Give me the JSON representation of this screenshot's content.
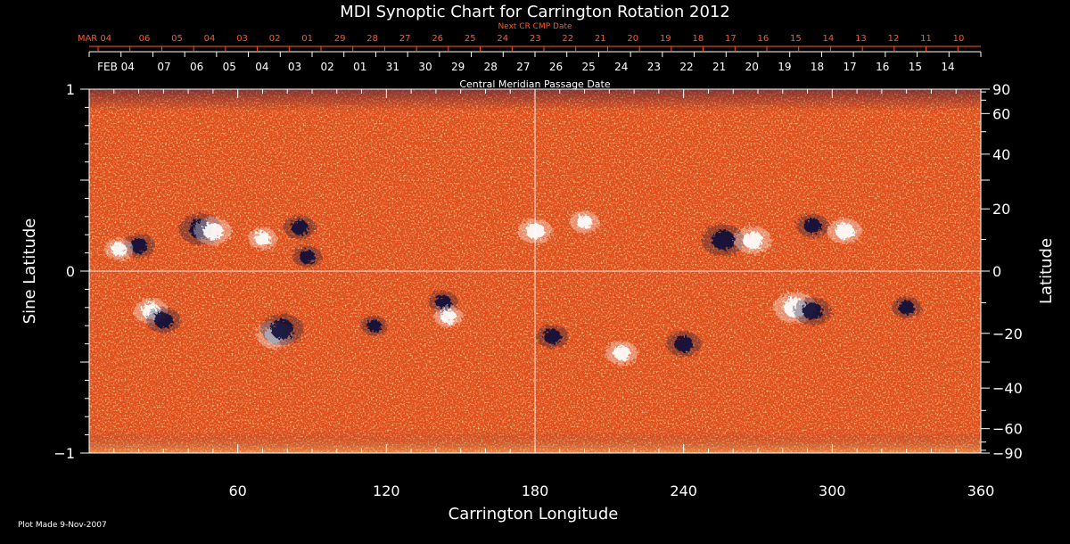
{
  "chart_data": {
    "type": "heatmap",
    "title": "MDI Synoptic Chart for Carrington Rotation 2012",
    "xlabel": "Carrington Longitude",
    "ylabel_left": "Sine Latitude",
    "ylabel_right": "Latitude",
    "xlim": [
      0,
      360
    ],
    "ylim": [
      -1,
      1
    ],
    "x_ticks": [
      60,
      120,
      180,
      240,
      300,
      360
    ],
    "y_ticks_left": [
      {
        "value": 1,
        "label": "1"
      },
      {
        "value": 0,
        "label": "0"
      },
      {
        "value": -1,
        "label": "−1"
      }
    ],
    "y_ticks_right": [
      {
        "deg": 90,
        "label": "90"
      },
      {
        "deg": 60,
        "label": "60"
      },
      {
        "deg": 40,
        "label": "40"
      },
      {
        "deg": 20,
        "label": "20"
      },
      {
        "deg": 0,
        "label": "0"
      },
      {
        "deg": -20,
        "label": "−20"
      },
      {
        "deg": -40,
        "label": "−40"
      },
      {
        "deg": -60,
        "label": "−60"
      },
      {
        "deg": -90,
        "label": "−90"
      }
    ],
    "cmp_axis_label": "Central Meridian Passage Date",
    "cmp_dates": [
      "FEB 04",
      "07",
      "06",
      "05",
      "04",
      "03",
      "02",
      "01",
      "31",
      "30",
      "29",
      "28",
      "27",
      "26",
      "25",
      "24",
      "23",
      "22",
      "21",
      "20",
      "19",
      "18",
      "17",
      "16",
      "15",
      "14"
    ],
    "next_cr_label": "Next CR CMP Date",
    "next_cr_dates": [
      "MAR 04",
      "06",
      "05",
      "04",
      "03",
      "02",
      "01",
      "29",
      "28",
      "27",
      "26",
      "25",
      "24",
      "23",
      "22",
      "21",
      "20",
      "19",
      "18",
      "17",
      "16",
      "15",
      "14",
      "13",
      "12",
      "11",
      "10"
    ],
    "colormap": {
      "background": "#e8501a",
      "positive": "#ffffff",
      "negative": "#10103a",
      "grid": "#ffffff",
      "next_cr_color": "#ff5a1e"
    },
    "active_regions": [
      {
        "lon": 45,
        "sinlat": 0.23,
        "polarity": "negative",
        "strength": 1.0
      },
      {
        "lon": 50,
        "sinlat": 0.22,
        "polarity": "positive",
        "strength": 0.8
      },
      {
        "lon": 70,
        "sinlat": 0.18,
        "polarity": "positive",
        "strength": 0.5
      },
      {
        "lon": 85,
        "sinlat": 0.24,
        "polarity": "negative",
        "strength": 0.6
      },
      {
        "lon": 88,
        "sinlat": 0.08,
        "polarity": "negative",
        "strength": 0.5
      },
      {
        "lon": 20,
        "sinlat": 0.14,
        "polarity": "negative",
        "strength": 0.6
      },
      {
        "lon": 12,
        "sinlat": 0.12,
        "polarity": "positive",
        "strength": 0.5
      },
      {
        "lon": 25,
        "sinlat": -0.22,
        "polarity": "positive",
        "strength": 0.7
      },
      {
        "lon": 30,
        "sinlat": -0.27,
        "polarity": "negative",
        "strength": 0.7
      },
      {
        "lon": 75,
        "sinlat": -0.35,
        "polarity": "positive",
        "strength": 0.8
      },
      {
        "lon": 78,
        "sinlat": -0.32,
        "polarity": "negative",
        "strength": 1.0
      },
      {
        "lon": 115,
        "sinlat": -0.3,
        "polarity": "negative",
        "strength": 0.4
      },
      {
        "lon": 143,
        "sinlat": -0.17,
        "polarity": "negative",
        "strength": 0.5
      },
      {
        "lon": 145,
        "sinlat": -0.25,
        "polarity": "positive",
        "strength": 0.5
      },
      {
        "lon": 180,
        "sinlat": 0.22,
        "polarity": "positive",
        "strength": 0.7
      },
      {
        "lon": 187,
        "sinlat": -0.36,
        "polarity": "negative",
        "strength": 0.6
      },
      {
        "lon": 200,
        "sinlat": 0.27,
        "polarity": "positive",
        "strength": 0.5
      },
      {
        "lon": 256,
        "sinlat": 0.17,
        "polarity": "negative",
        "strength": 1.0
      },
      {
        "lon": 268,
        "sinlat": 0.17,
        "polarity": "positive",
        "strength": 0.8
      },
      {
        "lon": 285,
        "sinlat": -0.2,
        "polarity": "positive",
        "strength": 1.0
      },
      {
        "lon": 292,
        "sinlat": -0.22,
        "polarity": "negative",
        "strength": 0.8
      },
      {
        "lon": 305,
        "sinlat": 0.22,
        "polarity": "positive",
        "strength": 0.7
      },
      {
        "lon": 292,
        "sinlat": 0.25,
        "polarity": "negative",
        "strength": 0.6
      },
      {
        "lon": 240,
        "sinlat": -0.4,
        "polarity": "negative",
        "strength": 0.7
      },
      {
        "lon": 215,
        "sinlat": -0.45,
        "polarity": "positive",
        "strength": 0.6
      },
      {
        "lon": 330,
        "sinlat": -0.2,
        "polarity": "negative",
        "strength": 0.5
      }
    ]
  },
  "footer": {
    "plot_made": "Plot Made  9-Nov-2007"
  }
}
